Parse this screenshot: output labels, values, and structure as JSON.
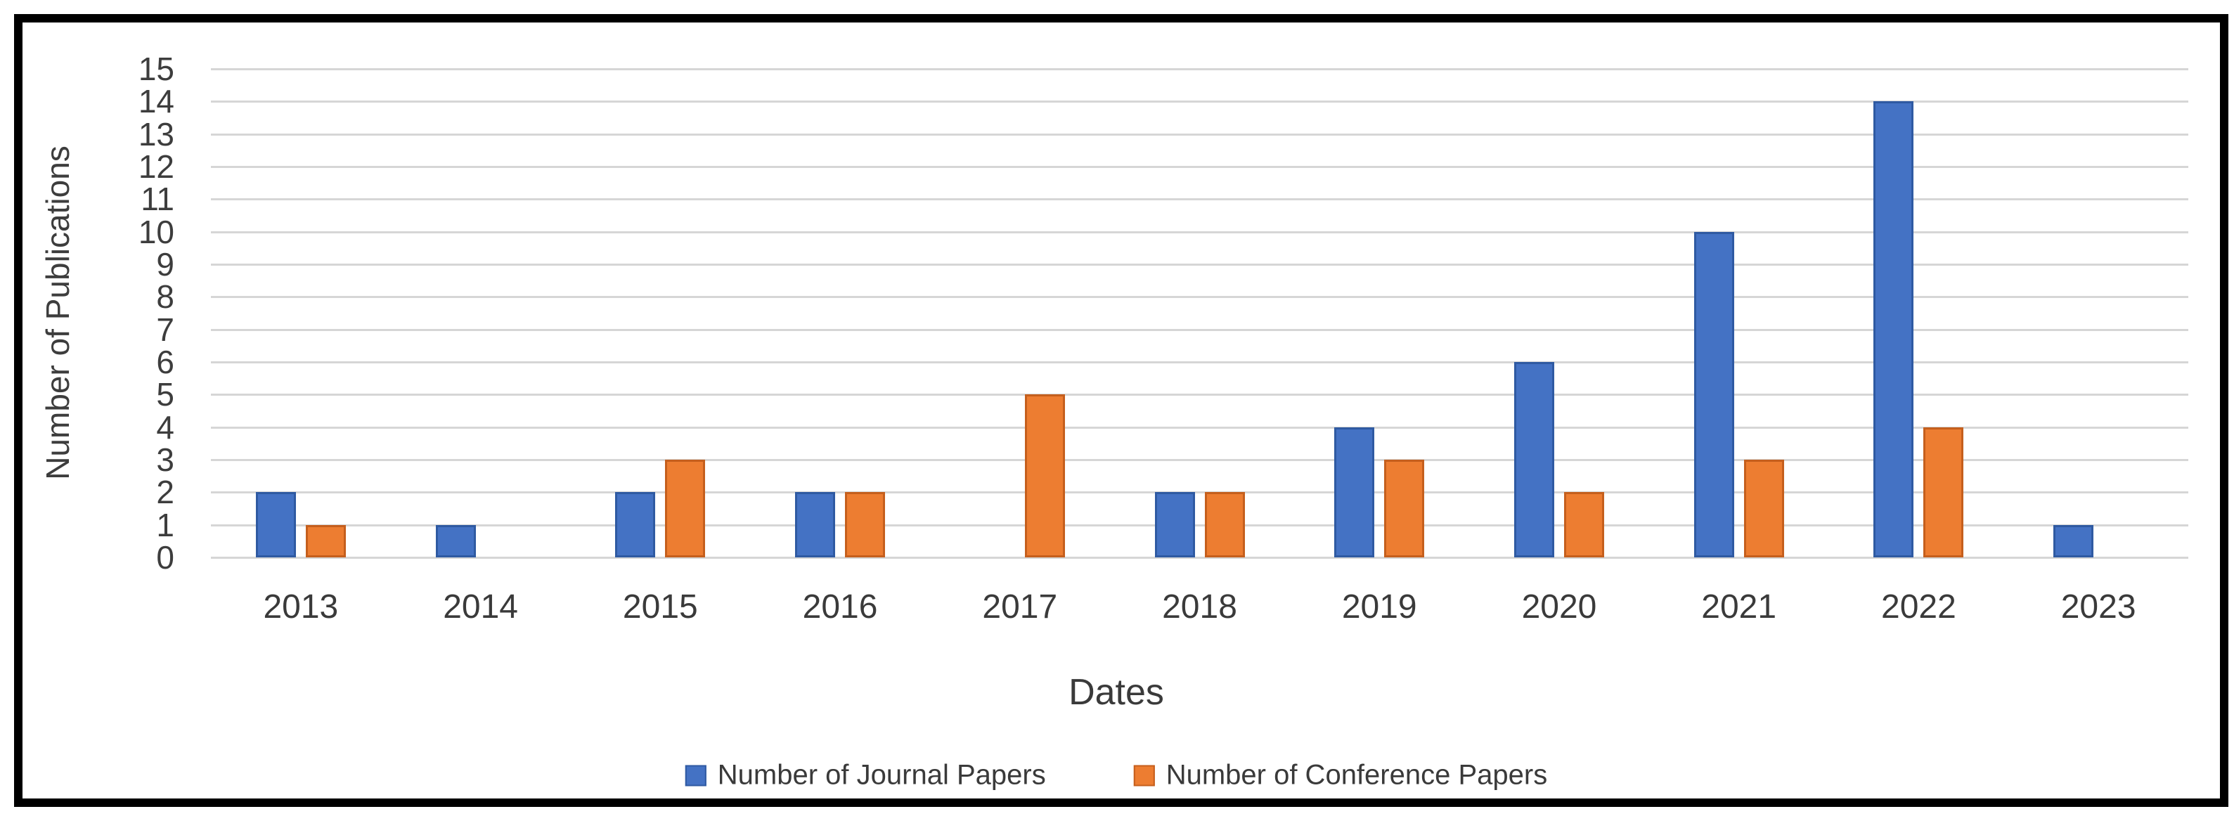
{
  "chart_data": {
    "type": "bar",
    "title": "",
    "xlabel": "Dates",
    "ylabel": "Number of Publications",
    "categories": [
      "2013",
      "2014",
      "2015",
      "2016",
      "2017",
      "2018",
      "2019",
      "2020",
      "2021",
      "2022",
      "2023"
    ],
    "series": [
      {
        "name": "Number of  Journal Papers",
        "color": "#4472C4",
        "border_color": "#2f5aa2",
        "values": [
          2,
          1,
          2,
          2,
          0,
          2,
          4,
          6,
          10,
          14,
          1
        ]
      },
      {
        "name": "Number of Conference Papers",
        "color": "#ED7D31",
        "border_color": "#c55f1d",
        "values": [
          1,
          0,
          3,
          2,
          5,
          2,
          3,
          2,
          3,
          4,
          0
        ]
      }
    ],
    "ylim": [
      0,
      15
    ],
    "ytick_step": 1,
    "yticks": [
      0,
      1,
      2,
      3,
      4,
      5,
      6,
      7,
      8,
      9,
      10,
      11,
      12,
      13,
      14,
      15
    ],
    "grid": "horizontal",
    "gridline_color": "#d6d6d6",
    "legend_position": "bottom",
    "frame_border_color": "#000000"
  }
}
